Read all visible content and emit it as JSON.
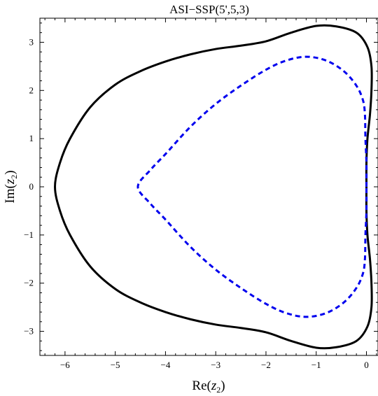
{
  "chart_data": {
    "type": "line",
    "title": "ASI−SSP(5',5,3)",
    "xlabel": {
      "prefix": "Re(",
      "var": "z",
      "sub": "2",
      "suffix": ")"
    },
    "ylabel": {
      "prefix": "Im(",
      "var": "z",
      "sub": "2",
      "suffix": ")"
    },
    "xlim": [
      -6.5,
      0.23
    ],
    "ylim": [
      -3.5,
      3.5
    ],
    "xticks": [
      -6,
      -5,
      -4,
      -3,
      -2,
      -1,
      0
    ],
    "xtick_labels": [
      "−6",
      "−5",
      "−4",
      "−3",
      "−2",
      "−1",
      "0"
    ],
    "yticks": [
      -3,
      -2,
      -1,
      0,
      1,
      2,
      3
    ],
    "ytick_labels": [
      "−3",
      "−2",
      "−1",
      "0",
      "1",
      "2",
      "3"
    ],
    "grid": false,
    "series": [
      {
        "style": "solid",
        "color": "#000000",
        "points": [
          [
            0.0,
            0.0
          ],
          [
            0.0,
            0.5
          ],
          [
            0.02,
            1.0
          ],
          [
            0.07,
            1.5
          ],
          [
            0.1,
            2.0
          ],
          [
            0.1,
            2.5
          ],
          [
            0.02,
            2.9
          ],
          [
            -0.2,
            3.2
          ],
          [
            -0.6,
            3.33
          ],
          [
            -1.0,
            3.34
          ],
          [
            -1.5,
            3.2
          ],
          [
            -2.0,
            3.02
          ],
          [
            -2.5,
            2.93
          ],
          [
            -3.0,
            2.86
          ],
          [
            -3.5,
            2.75
          ],
          [
            -4.0,
            2.6
          ],
          [
            -4.5,
            2.4
          ],
          [
            -5.0,
            2.12
          ],
          [
            -5.5,
            1.65
          ],
          [
            -5.9,
            1.0
          ],
          [
            -6.1,
            0.5
          ],
          [
            -6.2,
            0.0
          ],
          [
            -6.1,
            -0.5
          ],
          [
            -5.9,
            -1.0
          ],
          [
            -5.5,
            -1.65
          ],
          [
            -5.0,
            -2.12
          ],
          [
            -4.5,
            -2.4
          ],
          [
            -4.0,
            -2.6
          ],
          [
            -3.5,
            -2.75
          ],
          [
            -3.0,
            -2.86
          ],
          [
            -2.5,
            -2.93
          ],
          [
            -2.0,
            -3.02
          ],
          [
            -1.5,
            -3.2
          ],
          [
            -1.0,
            -3.34
          ],
          [
            -0.6,
            -3.33
          ],
          [
            -0.2,
            -3.2
          ],
          [
            0.02,
            -2.9
          ],
          [
            0.1,
            -2.5
          ],
          [
            0.1,
            -2.0
          ],
          [
            0.07,
            -1.5
          ],
          [
            0.02,
            -1.0
          ],
          [
            0.0,
            -0.5
          ],
          [
            0.0,
            0.0
          ]
        ]
      },
      {
        "style": "dashed",
        "color": "#0000ee",
        "points": [
          [
            0.0,
            0.0
          ],
          [
            0.0,
            0.5
          ],
          [
            -0.02,
            1.0
          ],
          [
            -0.03,
            1.5
          ],
          [
            -0.07,
            1.8
          ],
          [
            -0.2,
            2.1
          ],
          [
            -0.45,
            2.4
          ],
          [
            -0.8,
            2.62
          ],
          [
            -1.2,
            2.7
          ],
          [
            -1.6,
            2.62
          ],
          [
            -2.0,
            2.43
          ],
          [
            -2.5,
            2.1
          ],
          [
            -3.0,
            1.72
          ],
          [
            -3.5,
            1.25
          ],
          [
            -4.0,
            0.68
          ],
          [
            -4.3,
            0.35
          ],
          [
            -4.55,
            0.0
          ],
          [
            -4.3,
            -0.35
          ],
          [
            -4.0,
            -0.68
          ],
          [
            -3.5,
            -1.25
          ],
          [
            -3.0,
            -1.72
          ],
          [
            -2.5,
            -2.1
          ],
          [
            -2.0,
            -2.43
          ],
          [
            -1.6,
            -2.62
          ],
          [
            -1.2,
            -2.7
          ],
          [
            -0.8,
            -2.62
          ],
          [
            -0.45,
            -2.4
          ],
          [
            -0.2,
            -2.1
          ],
          [
            -0.07,
            -1.8
          ],
          [
            -0.03,
            -1.5
          ],
          [
            -0.02,
            -1.0
          ],
          [
            0.0,
            -0.5
          ],
          [
            0.0,
            0.0
          ]
        ]
      }
    ]
  }
}
